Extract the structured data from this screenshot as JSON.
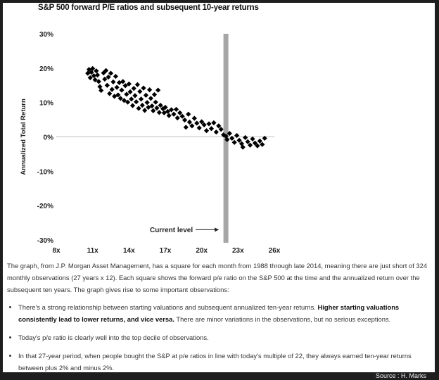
{
  "chart_data": {
    "type": "scatter",
    "title": "S&P 500 forward P/E ratios and subsequent 10-year returns",
    "xlabel": "",
    "ylabel": "Annualized Total Return",
    "xlim": [
      8,
      26
    ],
    "ylim": [
      -30,
      30
    ],
    "xticks": [
      "8x",
      "11x",
      "14x",
      "17x",
      "20x",
      "23x",
      "26x"
    ],
    "yticks": [
      "30%",
      "20%",
      "10%",
      "0%",
      "-10%",
      "-20%",
      "-30%"
    ],
    "current_level": 22,
    "current_label": "Current level",
    "grid": false,
    "legend": "none",
    "marker": "diamond",
    "marker_color": "#000000",
    "current_line_color": "#a6a6a6",
    "points": [
      {
        "x": 10.6,
        "y": 18.5
      },
      {
        "x": 10.7,
        "y": 19.6
      },
      {
        "x": 10.8,
        "y": 17.2
      },
      {
        "x": 10.9,
        "y": 18.8
      },
      {
        "x": 11.0,
        "y": 19.9
      },
      {
        "x": 11.1,
        "y": 17.8
      },
      {
        "x": 11.2,
        "y": 16.6
      },
      {
        "x": 11.3,
        "y": 19.2
      },
      {
        "x": 11.4,
        "y": 18.0
      },
      {
        "x": 11.5,
        "y": 16.1
      },
      {
        "x": 11.6,
        "y": 14.6
      },
      {
        "x": 11.7,
        "y": 13.5
      },
      {
        "x": 11.9,
        "y": 18.6
      },
      {
        "x": 12.0,
        "y": 16.8
      },
      {
        "x": 12.1,
        "y": 19.3
      },
      {
        "x": 12.2,
        "y": 15.0
      },
      {
        "x": 12.3,
        "y": 17.4
      },
      {
        "x": 12.4,
        "y": 12.6
      },
      {
        "x": 12.5,
        "y": 18.5
      },
      {
        "x": 12.6,
        "y": 13.8
      },
      {
        "x": 12.7,
        "y": 16.0
      },
      {
        "x": 12.8,
        "y": 11.8
      },
      {
        "x": 12.9,
        "y": 17.6
      },
      {
        "x": 13.0,
        "y": 14.4
      },
      {
        "x": 13.1,
        "y": 12.2
      },
      {
        "x": 13.2,
        "y": 15.8
      },
      {
        "x": 13.3,
        "y": 11.2
      },
      {
        "x": 13.4,
        "y": 13.6
      },
      {
        "x": 13.5,
        "y": 16.1
      },
      {
        "x": 13.6,
        "y": 10.6
      },
      {
        "x": 13.7,
        "y": 14.9
      },
      {
        "x": 13.8,
        "y": 12.4
      },
      {
        "x": 13.9,
        "y": 10.1
      },
      {
        "x": 14.0,
        "y": 15.4
      },
      {
        "x": 14.1,
        "y": 13.1
      },
      {
        "x": 14.2,
        "y": 11.0
      },
      {
        "x": 14.3,
        "y": 9.1
      },
      {
        "x": 14.4,
        "y": 14.1
      },
      {
        "x": 14.5,
        "y": 12.0
      },
      {
        "x": 14.6,
        "y": 10.2
      },
      {
        "x": 14.7,
        "y": 15.2
      },
      {
        "x": 14.8,
        "y": 8.3
      },
      {
        "x": 14.9,
        "y": 13.2
      },
      {
        "x": 15.0,
        "y": 11.0
      },
      {
        "x": 15.1,
        "y": 9.2
      },
      {
        "x": 15.2,
        "y": 14.2
      },
      {
        "x": 15.3,
        "y": 7.7
      },
      {
        "x": 15.4,
        "y": 12.1
      },
      {
        "x": 15.5,
        "y": 10.0
      },
      {
        "x": 15.6,
        "y": 8.6
      },
      {
        "x": 15.7,
        "y": 13.7
      },
      {
        "x": 15.8,
        "y": 11.2
      },
      {
        "x": 15.9,
        "y": 9.0
      },
      {
        "x": 16.0,
        "y": 7.6
      },
      {
        "x": 16.1,
        "y": 12.3
      },
      {
        "x": 16.2,
        "y": 10.1
      },
      {
        "x": 16.3,
        "y": 8.4
      },
      {
        "x": 16.4,
        "y": 13.6
      },
      {
        "x": 16.5,
        "y": 7.1
      },
      {
        "x": 16.6,
        "y": 9.2
      },
      {
        "x": 16.8,
        "y": 8.2
      },
      {
        "x": 16.9,
        "y": 7.0
      },
      {
        "x": 17.0,
        "y": 8.6
      },
      {
        "x": 17.2,
        "y": 7.4
      },
      {
        "x": 17.3,
        "y": 6.2
      },
      {
        "x": 17.5,
        "y": 7.9
      },
      {
        "x": 17.7,
        "y": 6.6
      },
      {
        "x": 17.9,
        "y": 8.0
      },
      {
        "x": 18.0,
        "y": 5.5
      },
      {
        "x": 18.2,
        "y": 7.0
      },
      {
        "x": 18.4,
        "y": 6.0
      },
      {
        "x": 18.6,
        "y": 4.9
      },
      {
        "x": 18.7,
        "y": 2.8
      },
      {
        "x": 18.9,
        "y": 6.6
      },
      {
        "x": 19.0,
        "y": 4.3
      },
      {
        "x": 19.2,
        "y": 3.2
      },
      {
        "x": 19.4,
        "y": 5.4
      },
      {
        "x": 19.6,
        "y": 4.0
      },
      {
        "x": 19.8,
        "y": 2.6
      },
      {
        "x": 20.0,
        "y": 4.4
      },
      {
        "x": 20.2,
        "y": 3.5
      },
      {
        "x": 20.4,
        "y": 1.8
      },
      {
        "x": 20.6,
        "y": 3.8
      },
      {
        "x": 20.8,
        "y": 2.4
      },
      {
        "x": 21.0,
        "y": 4.1
      },
      {
        "x": 21.2,
        "y": 1.4
      },
      {
        "x": 21.4,
        "y": 3.2
      },
      {
        "x": 21.6,
        "y": 2.2
      },
      {
        "x": 21.8,
        "y": 0.6
      },
      {
        "x": 22.0,
        "y": 0.2
      },
      {
        "x": 22.1,
        "y": -0.8
      },
      {
        "x": 22.3,
        "y": 1.0
      },
      {
        "x": 22.5,
        "y": -0.4
      },
      {
        "x": 22.7,
        "y": -1.6
      },
      {
        "x": 22.9,
        "y": 0.4
      },
      {
        "x": 23.1,
        "y": -1.0
      },
      {
        "x": 23.3,
        "y": -2.0
      },
      {
        "x": 23.4,
        "y": -3.0
      },
      {
        "x": 23.6,
        "y": -0.2
      },
      {
        "x": 23.8,
        "y": -1.4
      },
      {
        "x": 24.0,
        "y": -2.4
      },
      {
        "x": 24.2,
        "y": -0.6
      },
      {
        "x": 24.4,
        "y": -1.8
      },
      {
        "x": 24.6,
        "y": -2.6
      },
      {
        "x": 24.8,
        "y": -1.2
      },
      {
        "x": 25.0,
        "y": -2.2
      },
      {
        "x": 25.2,
        "y": -0.4
      }
    ]
  },
  "article": {
    "intro": "The graph, from J.P. Morgan Asset Management, has a square for each month from 1988 through late 2014, meaning there are just short of 324 monthly observations (27 years x 12). Each square shows the forward p/e ratio on the S&P 500 at the time and the annualized return over the subsequent ten years. The graph gives rise to some important observations:",
    "bullet1_text": "There's a strong relationship between starting valuations and subsequent annualized ten-year returns. ",
    "bullet1_bold": "Higher starting valuations consistently lead to lower returns, and vice versa.",
    "bullet1_tail": " There are minor variations in the observations, but no serious exceptions.",
    "bullet2": "Today's p/e ratio is clearly well into the top decile of observations.",
    "bullet3": "In that 27-year period, when people bought the S&P at p/e ratios in line with today's multiple of 22, they always earned ten-year returns between plus 2% and minus 2%."
  },
  "source": "Source : H. Marks"
}
